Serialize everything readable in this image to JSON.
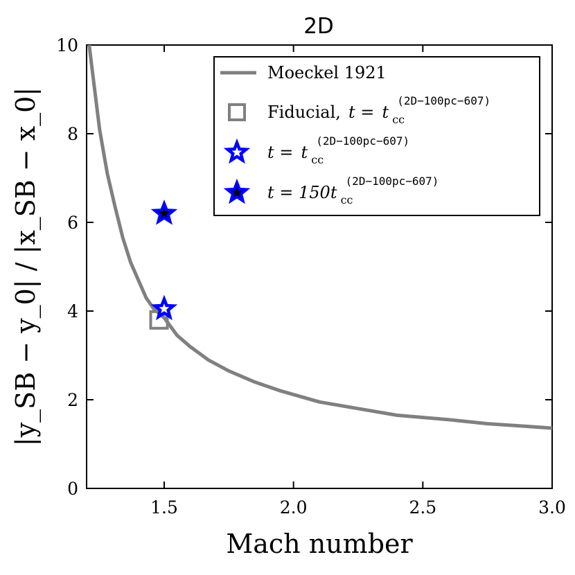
{
  "chart_data": {
    "type": "scatter",
    "title": "2D",
    "xlabel": "Mach number",
    "ylabel": "|y_SB − y_0| / |x_SB − x_0|",
    "xlim": [
      1.2,
      3.0
    ],
    "ylim": [
      0,
      10
    ],
    "xticks": [
      1.5,
      2.0,
      2.5,
      3.0
    ],
    "xtick_labels": [
      "1.5",
      "2.0",
      "2.5",
      "3.0"
    ],
    "yticks": [
      0,
      2,
      4,
      6,
      8,
      10
    ],
    "ytick_labels": [
      "0",
      "2",
      "4",
      "6",
      "8",
      "10"
    ],
    "legend_position": "top-right",
    "grid": false,
    "series": [
      {
        "name": "Moeckel 1921",
        "kind": "line",
        "color": "#808080",
        "x": [
          1.21,
          1.25,
          1.28,
          1.31,
          1.34,
          1.37,
          1.4,
          1.43,
          1.46,
          1.5,
          1.55,
          1.6,
          1.67,
          1.75,
          1.85,
          1.95,
          2.1,
          2.25,
          2.4,
          2.6,
          2.75,
          2.9,
          3.0
        ],
        "y": [
          10.0,
          8.1,
          7.1,
          6.35,
          5.65,
          5.1,
          4.7,
          4.3,
          4.05,
          3.85,
          3.45,
          3.2,
          2.9,
          2.65,
          2.4,
          2.2,
          1.95,
          1.8,
          1.65,
          1.55,
          1.46,
          1.4,
          1.36
        ]
      },
      {
        "name": "Fiducial, t = t_cc^(2D−100pc−607)",
        "kind": "open-square",
        "color": "#808080",
        "x": [
          1.48
        ],
        "y": [
          3.8
        ]
      },
      {
        "name": "t = t_cc^(2D−100pc−607)",
        "kind": "open-star",
        "color": "#0000ff",
        "x": [
          1.5
        ],
        "y": [
          4.05
        ]
      },
      {
        "name": "t = 150 t_cc^(2D−100pc−607)",
        "kind": "filled-star",
        "color": "#0000ff",
        "fill": "#000000",
        "x": [
          1.5
        ],
        "y": [
          6.2
        ]
      }
    ],
    "legend": {
      "moeckel": "Moeckel 1921",
      "fiducial_word": "Fiducial,",
      "t_eq": "t =",
      "t_sym": "t",
      "cc": "cc",
      "sup": "(2D−100pc−607)",
      "t_eq_150": "t = 150t"
    }
  }
}
